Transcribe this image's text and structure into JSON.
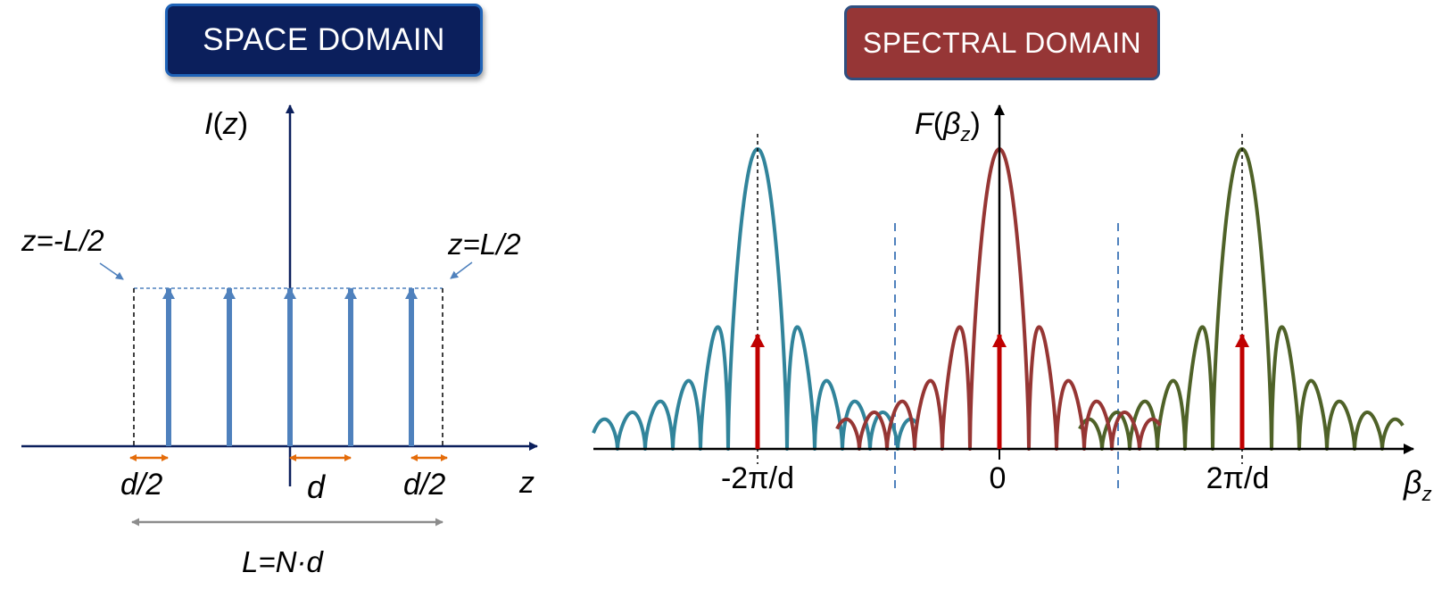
{
  "space_domain": {
    "title": "SPACE DOMAIN",
    "y_axis_label": {
      "main": "I",
      "open": "(",
      "var": "z",
      "close": ")"
    },
    "x_axis_label": "z",
    "left_edge_label": "z=-L/2",
    "right_edge_label": "z=L/2",
    "half_spacing_label_left": "d/2",
    "spacing_label": "d",
    "half_spacing_label_right": "d/2",
    "length_label": "L=N·d",
    "impulse_count": 5
  },
  "spectral_domain": {
    "title": "SPECTRAL DOMAIN",
    "y_axis_label": {
      "main": "F",
      "open": "(",
      "var": "β",
      "sub": "z",
      "close": ")"
    },
    "x_axis_label": {
      "var": "β",
      "sub": "z"
    },
    "tick_labels": [
      "-2π/d",
      "0",
      "2π/d"
    ],
    "lobes": [
      {
        "name": "replica-minus-2pi",
        "color": "#31849b"
      },
      {
        "name": "replica-zero",
        "color": "#963634"
      },
      {
        "name": "replica-plus-2pi",
        "color": "#4f6228"
      }
    ]
  },
  "colors": {
    "axis_navy": "#0b1f5c",
    "impulse_blue": "#4f81bd",
    "spacing_orange": "#e46c0a",
    "length_gray": "#8c8c8c",
    "spectral_arrow_red": "#c00000",
    "boundary_dash_blue": "#4f81bd"
  }
}
